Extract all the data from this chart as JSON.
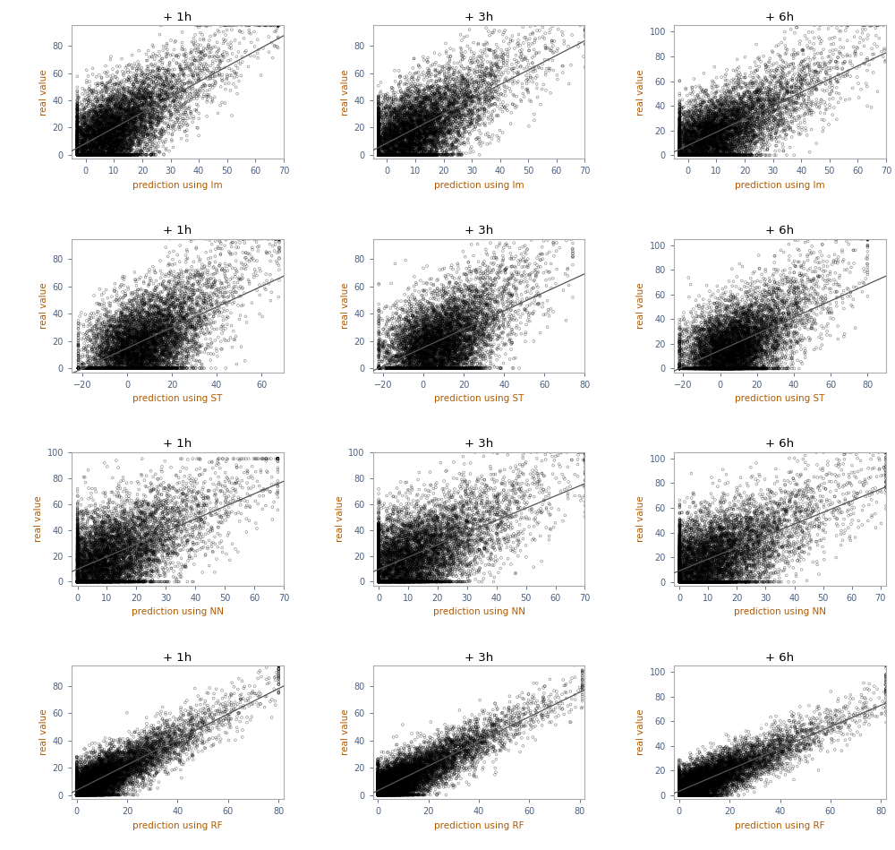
{
  "rows": 4,
  "cols": 3,
  "titles": [
    "+ 1h",
    "+ 3h",
    "+ 6h"
  ],
  "methods": [
    "lm",
    "ST",
    "NN",
    "RF"
  ],
  "xlabels": [
    [
      "prediction using lm",
      "prediction using lm",
      "prediction using lm"
    ],
    [
      "prediction using ST",
      "prediction using ST",
      "prediction using ST"
    ],
    [
      "prediction using NN",
      "prediction using NN",
      "prediction using NN"
    ],
    [
      "prediction using RF",
      "prediction using RF",
      "prediction using RF"
    ]
  ],
  "ylabel": "real value",
  "xlims": [
    [
      [
        -5,
        70
      ],
      [
        -5,
        70
      ],
      [
        -5,
        70
      ]
    ],
    [
      [
        -25,
        70
      ],
      [
        -25,
        80
      ],
      [
        -25,
        90
      ]
    ],
    [
      [
        -2,
        70
      ],
      [
        -2,
        70
      ],
      [
        -2,
        72
      ]
    ],
    [
      [
        -2,
        82
      ],
      [
        -2,
        82
      ],
      [
        -2,
        82
      ]
    ]
  ],
  "ylims": [
    [
      [
        -3,
        95
      ],
      [
        -3,
        95
      ],
      [
        -3,
        105
      ]
    ],
    [
      [
        -3,
        95
      ],
      [
        -3,
        95
      ],
      [
        -3,
        105
      ]
    ],
    [
      [
        -3,
        100
      ],
      [
        -3,
        100
      ],
      [
        -3,
        105
      ]
    ],
    [
      [
        -3,
        95
      ],
      [
        -3,
        95
      ],
      [
        -3,
        105
      ]
    ]
  ],
  "n_points": 8000,
  "random_seed": 42,
  "background_color": "#ffffff",
  "point_color": "#000000",
  "line_color": "#555555",
  "point_size": 4,
  "point_alpha": 0.5,
  "axis_label_color": "#b05a00",
  "tick_label_color": "#4a6080",
  "title_color": "#000000",
  "spine_color": "#aaaaaa"
}
